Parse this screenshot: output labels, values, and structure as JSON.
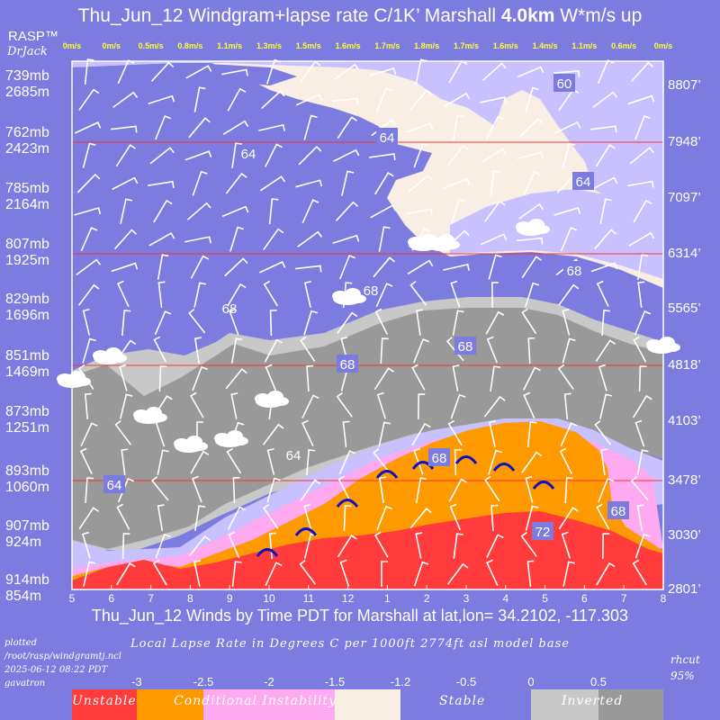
{
  "header": {
    "title_prefix": "Thu_Jun_12 Windgram+lapse rate C/1K’  Marshall ",
    "title_bold": "4.0km",
    "title_suffix": "  W*m/s up",
    "brand": "RASP™",
    "brand_sub": "DrJack"
  },
  "chart_data": {
    "type": "heatmap",
    "title": "Thu_Jun_12 Windgram+lapse rate C/1K’ Marshall 4.0km W*m/s up",
    "xlabel": "Thu_Jun_12 Winds by Time PDT for Marshall at lat,lon= 34.2102, -117.303",
    "x_ticks": [
      "5",
      "6",
      "7",
      "8",
      "9",
      "10",
      "11",
      "12",
      "1",
      "2",
      "3",
      "4",
      "5",
      "6",
      "7",
      "8"
    ],
    "left_axis": [
      {
        "mb": "739mb",
        "m": "2685m"
      },
      {
        "mb": "762mb",
        "m": "2423m"
      },
      {
        "mb": "785mb",
        "m": "2164m"
      },
      {
        "mb": "807mb",
        "m": "1925m"
      },
      {
        "mb": "829mb",
        "m": "1696m"
      },
      {
        "mb": "851mb",
        "m": "1469m"
      },
      {
        "mb": "873mb",
        "m": "1251m"
      },
      {
        "mb": "893mb",
        "m": "1060m"
      },
      {
        "mb": "907mb",
        "m": "924m"
      },
      {
        "mb": "914mb",
        "m": "854m"
      }
    ],
    "right_axis": [
      "8807’",
      "7948’",
      "7097’",
      "6314’",
      "5565’",
      "4818’",
      "4103’",
      "3478’",
      "3030’",
      "2801’"
    ],
    "wstar_m_s": [
      "0m/s",
      "0m/s",
      "0.5m/s",
      "0.8m/s",
      "1.1m/s",
      "1.3m/s",
      "1.5m/s",
      "1.6m/s",
      "1.7m/s",
      "1.8m/s",
      "1.7m/s",
      "1.6m/s",
      "1.4m/s",
      "1.1m/s",
      "0.6m/s",
      "0m/s"
    ],
    "rh_contours": [
      "60",
      "64",
      "64",
      "64",
      "68",
      "68",
      "68",
      "68",
      "68",
      "64",
      "64",
      "68",
      "68",
      "72"
    ],
    "lapse_scale_values": [
      "-3",
      "-2.5",
      "-2",
      "-1.5",
      "-1.2",
      "-0.5",
      "0",
      "0.5"
    ],
    "categories": [
      "Unstable",
      "Conditional Instability",
      "Stable",
      "Inverted"
    ],
    "colors": {
      "background": "#7b7be0",
      "unstable": "#ff3b3b",
      "conditional": "#ff9900",
      "pink": "#ffaaf0",
      "cream": "#f8eee4",
      "lavender": "#c8c0ff",
      "stable": "#7b7be0",
      "inverted_light": "#c8c8c8",
      "inverted_dark": "#999999",
      "wstar_text": "#ffff33"
    }
  },
  "footer": {
    "plotted": [
      "plotted",
      "/root/rasp/windgramtj.ncl",
      "2025-06-12 08:22 PDT",
      "gavatron"
    ],
    "lapse_label": "Local Lapse Rate in Degrees C per 1000ft  2774ft asl model base",
    "rhcut": "rhcut",
    "rhcut_value": "95%"
  }
}
